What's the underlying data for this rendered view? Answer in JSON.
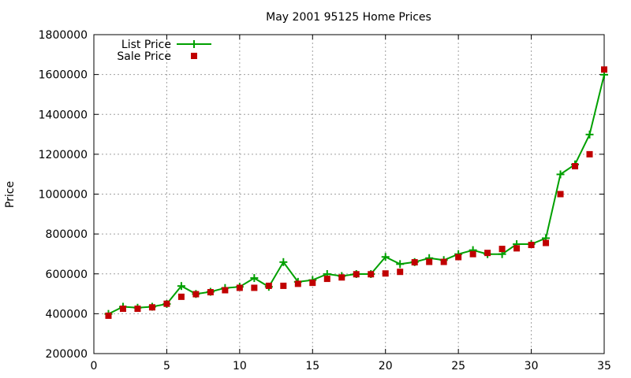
{
  "chart_data": {
    "type": "line",
    "title": "May 2001 95125 Home Prices",
    "xlabel": "",
    "ylabel": "Price",
    "xlim": [
      0,
      35
    ],
    "ylim": [
      200000,
      1800000
    ],
    "xticks": [
      0,
      5,
      10,
      15,
      20,
      25,
      30,
      35
    ],
    "yticks": [
      200000,
      400000,
      600000,
      800000,
      1000000,
      1200000,
      1400000,
      1600000,
      1800000
    ],
    "grid": true,
    "legend_position": "top-left",
    "x": [
      1,
      2,
      3,
      4,
      5,
      6,
      7,
      8,
      9,
      10,
      11,
      12,
      13,
      14,
      15,
      16,
      17,
      18,
      19,
      20,
      21,
      22,
      23,
      24,
      25,
      26,
      27,
      28,
      29,
      30,
      31,
      32,
      33,
      34,
      35
    ],
    "series": [
      {
        "name": "List Price",
        "style": "lines-points",
        "marker": "plus",
        "color": "#00a000",
        "values": [
          399000,
          435000,
          430000,
          435000,
          449000,
          539000,
          499000,
          510000,
          529000,
          535000,
          579000,
          535000,
          659000,
          560000,
          569000,
          599000,
          589000,
          599000,
          599000,
          685000,
          649000,
          659000,
          679000,
          669000,
          699000,
          719000,
          699000,
          699000,
          749000,
          749000,
          779000,
          1099000,
          1149000,
          1299000,
          1599000
        ]
      },
      {
        "name": "Sale Price",
        "style": "points",
        "marker": "square",
        "color": "#c00000",
        "values": [
          390000,
          425000,
          425000,
          432000,
          450000,
          485000,
          498000,
          508000,
          518000,
          530000,
          530000,
          540000,
          540000,
          550000,
          555000,
          575000,
          582000,
          598000,
          598000,
          602000,
          610000,
          658000,
          660000,
          660000,
          684000,
          699000,
          705000,
          725000,
          728000,
          745000,
          755000,
          1000000,
          1140000,
          1200000,
          1625000
        ]
      }
    ]
  }
}
